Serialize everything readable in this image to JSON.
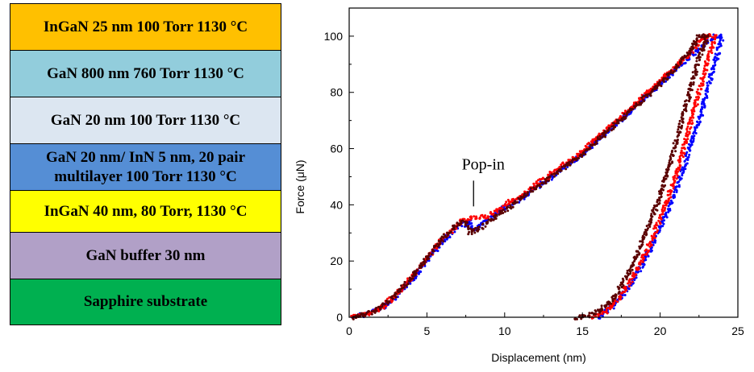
{
  "layer_stack": [
    {
      "label": "InGaN 25 nm 100 Torr 1130 °C",
      "color": "#FFC000"
    },
    {
      "label": "GaN 800 nm 760 Torr 1130 °C",
      "color": "#92CDDC"
    },
    {
      "label": "GaN 20 nm 100 Torr 1130 °C",
      "color": "#DCE6F1"
    },
    {
      "label": "GaN 20 nm/ InN 5 nm, 20 pair\nmultilayer 100 Torr 1130 °C",
      "color": "#558ED5"
    },
    {
      "label": "InGaN 40 nm, 80 Torr, 1130 °C",
      "color": "#FFFF00"
    },
    {
      "label": "GaN buffer 30 nm",
      "color": "#B1A0C7"
    },
    {
      "label": "Sapphire substrate",
      "color": "#00B050"
    }
  ],
  "chart_data": {
    "type": "scatter",
    "xlabel": "Displacement (nm)",
    "ylabel": "Force (μN)",
    "xlim": [
      0,
      25
    ],
    "ylim": [
      0,
      110
    ],
    "xticks": [
      "0",
      "5",
      "10",
      "15",
      "20",
      "25"
    ],
    "yticks": [
      "0",
      "20",
      "40",
      "60",
      "80",
      "100"
    ],
    "annotation": {
      "text": "Pop-in",
      "x": 8.0,
      "y": 36
    },
    "series": [
      {
        "color": "#0000ff",
        "loading": [
          [
            0.2,
            0
          ],
          [
            1,
            1
          ],
          [
            2,
            3
          ],
          [
            3,
            7
          ],
          [
            4,
            13
          ],
          [
            5,
            20
          ],
          [
            6,
            27
          ],
          [
            7,
            32
          ],
          [
            7.8,
            34
          ],
          [
            8,
            31
          ],
          [
            9,
            35
          ],
          [
            10,
            39
          ],
          [
            11,
            42
          ],
          [
            12,
            46
          ],
          [
            13,
            50
          ],
          [
            14,
            54
          ],
          [
            15,
            58
          ],
          [
            16,
            63
          ],
          [
            17,
            68
          ],
          [
            18,
            73
          ],
          [
            19,
            78
          ],
          [
            20,
            83
          ],
          [
            21,
            88
          ],
          [
            22,
            93
          ],
          [
            23,
            98
          ],
          [
            23.5,
            100
          ],
          [
            24,
            100
          ]
        ],
        "unloading": [
          [
            24,
            100
          ],
          [
            23.5,
            90
          ],
          [
            23,
            80
          ],
          [
            22.5,
            70
          ],
          [
            22,
            62
          ],
          [
            21.5,
            53
          ],
          [
            21,
            45
          ],
          [
            20.5,
            38
          ],
          [
            20,
            32
          ],
          [
            19.5,
            26
          ],
          [
            19,
            20
          ],
          [
            18.5,
            15
          ],
          [
            18,
            11
          ],
          [
            17.5,
            7
          ],
          [
            17,
            4
          ],
          [
            16.5,
            2
          ],
          [
            16,
            0
          ]
        ]
      },
      {
        "color": "#ff0000",
        "loading": [
          [
            0.2,
            0
          ],
          [
            1,
            1
          ],
          [
            2,
            3
          ],
          [
            3,
            8
          ],
          [
            4,
            14
          ],
          [
            5,
            21
          ],
          [
            6,
            28
          ],
          [
            7,
            33
          ],
          [
            7.5,
            35
          ],
          [
            9,
            36
          ],
          [
            10,
            40
          ],
          [
            11,
            43
          ],
          [
            12,
            47
          ],
          [
            13,
            51
          ],
          [
            14,
            55
          ],
          [
            15,
            59
          ],
          [
            16,
            64
          ],
          [
            17,
            69
          ],
          [
            18,
            74
          ],
          [
            19,
            79
          ],
          [
            20,
            84
          ],
          [
            21,
            89
          ],
          [
            22,
            94
          ],
          [
            22.5,
            98
          ],
          [
            23,
            100
          ],
          [
            23.5,
            100
          ]
        ],
        "unloading": [
          [
            23.5,
            100
          ],
          [
            23,
            90
          ],
          [
            22.5,
            80
          ],
          [
            22,
            70
          ],
          [
            21.5,
            60
          ],
          [
            21,
            50
          ],
          [
            20.5,
            42
          ],
          [
            20,
            35
          ],
          [
            19.5,
            28
          ],
          [
            19,
            22
          ],
          [
            18.5,
            17
          ],
          [
            18,
            12
          ],
          [
            17.5,
            8
          ],
          [
            17,
            5
          ],
          [
            16.5,
            2
          ],
          [
            15.5,
            0
          ]
        ]
      },
      {
        "color": "#5a0000",
        "loading": [
          [
            0.2,
            0
          ],
          [
            1,
            1
          ],
          [
            2,
            3
          ],
          [
            3,
            8
          ],
          [
            4,
            14
          ],
          [
            5,
            21
          ],
          [
            6,
            28
          ],
          [
            7,
            33
          ],
          [
            7.5,
            34
          ],
          [
            7.8,
            30
          ],
          [
            8.5,
            32
          ],
          [
            9,
            34
          ],
          [
            10,
            38
          ],
          [
            11,
            42
          ],
          [
            12,
            46
          ],
          [
            13,
            50
          ],
          [
            14,
            54
          ],
          [
            15,
            58
          ],
          [
            16,
            63
          ],
          [
            17,
            68
          ],
          [
            18,
            73
          ],
          [
            19,
            78
          ],
          [
            20,
            83
          ],
          [
            21,
            89
          ],
          [
            22,
            95
          ],
          [
            22.5,
            100
          ],
          [
            23,
            100
          ]
        ],
        "unloading": [
          [
            23,
            100
          ],
          [
            22.5,
            92
          ],
          [
            22,
            82
          ],
          [
            21.5,
            72
          ],
          [
            21,
            62
          ],
          [
            20.5,
            52
          ],
          [
            20,
            43
          ],
          [
            19.5,
            36
          ],
          [
            19,
            29
          ],
          [
            18.5,
            22
          ],
          [
            18,
            16
          ],
          [
            17.5,
            11
          ],
          [
            17,
            7
          ],
          [
            16.5,
            4
          ],
          [
            16,
            2
          ],
          [
            15,
            0
          ],
          [
            14.5,
            0
          ]
        ]
      }
    ]
  }
}
